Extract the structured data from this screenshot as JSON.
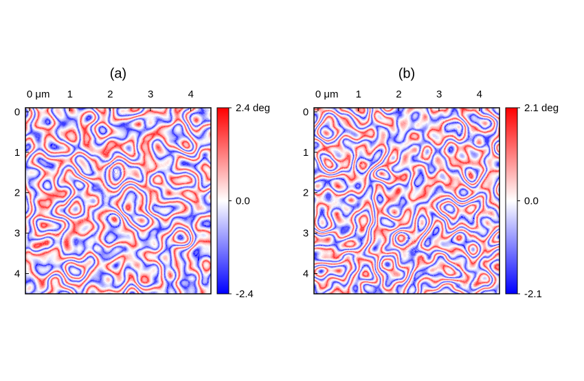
{
  "chart_data": [
    {
      "type": "heatmap",
      "title": "(a)",
      "xlim": [
        -0.1,
        4.5
      ],
      "xticks": [
        {
          "value": 0,
          "label": "0 μm"
        },
        1,
        2,
        3,
        4
      ],
      "ylim": [
        -0.1,
        4.5
      ],
      "yticks": [
        0,
        1,
        2,
        3,
        4
      ],
      "colormap": [
        "#0000ff",
        "#ffffff",
        "#ff0000"
      ],
      "colorbar": {
        "lim": [
          -2.4,
          2.4
        ],
        "ticks": [
          {
            "value": 2.4,
            "label": "2.4 deg"
          },
          {
            "value": 0,
            "label": "0.0"
          },
          -2.4
        ]
      }
    },
    {
      "type": "heatmap",
      "title": "(b)",
      "xlim": [
        -0.1,
        4.5
      ],
      "xticks": [
        {
          "value": 0,
          "label": "0 μm"
        },
        1,
        2,
        3,
        4
      ],
      "ylim": [
        -0.1,
        4.5
      ],
      "yticks": [
        0,
        1,
        2,
        3,
        4
      ],
      "colormap": [
        "#0000ff",
        "#ffffff",
        "#ff0000"
      ],
      "colorbar": {
        "lim": [
          -2.1,
          2.1
        ],
        "ticks": [
          {
            "value": 2.1,
            "label": "2.1 deg"
          },
          {
            "value": 0,
            "label": "0.0"
          },
          -2.1
        ]
      }
    }
  ]
}
